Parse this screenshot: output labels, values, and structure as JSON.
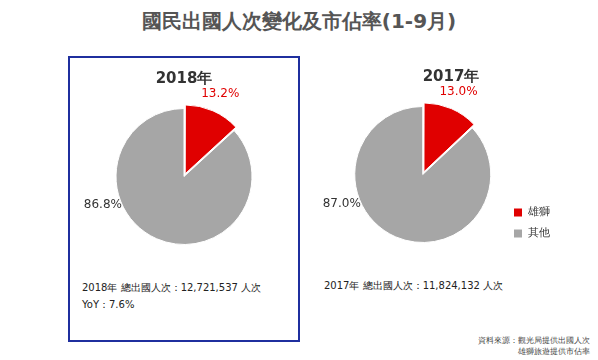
{
  "title": "國民出國人次變化及市佔率(1-9月)",
  "chart_data": [
    {
      "type": "pie",
      "title": "2018年",
      "categories": [
        "雄獅",
        "其他"
      ],
      "values": [
        13.2,
        86.8
      ],
      "value_labels": [
        "13.2%",
        "86.8%"
      ],
      "colors": [
        "#e00000",
        "#a6a6a6"
      ],
      "data_labels": true,
      "annotations": [
        "2018年 總出國人次：12,721,537 人次",
        "YoY：7.6%"
      ]
    },
    {
      "type": "pie",
      "title": "2017年",
      "categories": [
        "雄獅",
        "其他"
      ],
      "values": [
        13.0,
        87.0
      ],
      "value_labels": [
        "13.0%",
        "87.0%"
      ],
      "colors": [
        "#e00000",
        "#a6a6a6"
      ],
      "data_labels": true,
      "legend": "right",
      "annotations": [
        "2017年 總出國人次：11,824,132 人次"
      ]
    }
  ],
  "source": [
    "資料來源：觀光局提供出國人次",
    "雄獅旅遊提供市佔率"
  ]
}
